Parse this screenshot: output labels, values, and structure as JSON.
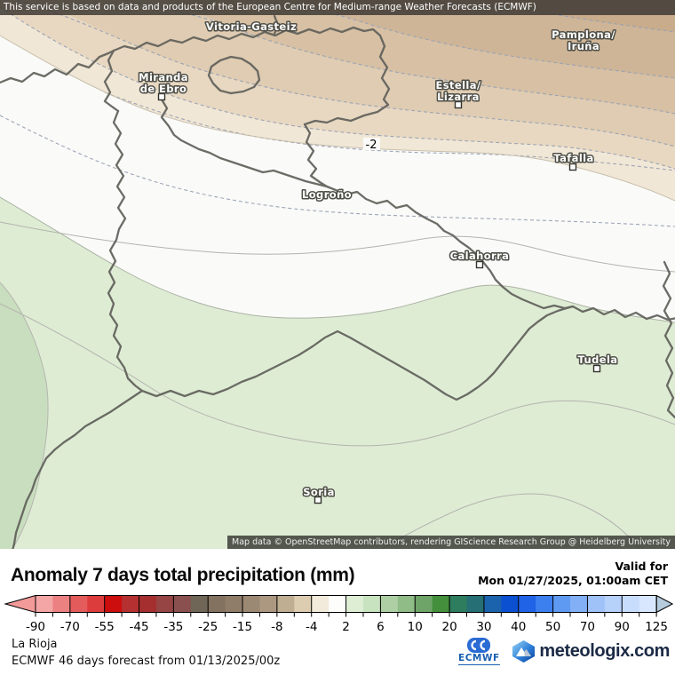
{
  "top_bar": {
    "text": "This service is based on data and products of the European Centre for Medium-range Weather Forecasts (ECMWF)"
  },
  "map": {
    "contour_label": "-2",
    "attribution": "Map data © OpenStreetMap contributors, rendering GIScience Research Group @ Heidelberg University",
    "cities": [
      {
        "line1": "Vitoria-Gasteiz"
      },
      {
        "line1": "Pamplona/",
        "line2": "Iruña"
      },
      {
        "line1": "Miranda",
        "line2": "de Ebro"
      },
      {
        "line1": "Estella/",
        "line2": "Lizarra"
      },
      {
        "line1": "Tafalla"
      },
      {
        "line1": "Logroño"
      },
      {
        "line1": "Calahorra"
      },
      {
        "line1": "Tudela"
      },
      {
        "line1": "Soria"
      }
    ],
    "colors": {
      "white_band": "#FAFAF8",
      "green": "#DEECD4",
      "green_dark": "#C9DEBF",
      "tan_bands": [
        "#C9AC8B",
        "#CFB597",
        "#D7C0A4",
        "#DFCCB2",
        "#E8D8C1",
        "#F1E7D6"
      ]
    }
  },
  "panel": {
    "title": "Anomaly 7 days total precipitation (mm)",
    "valid_for_label": "Valid for",
    "valid_datetime": "Mon 01/27/2025, 01:00am CET",
    "region": "La Rioja",
    "forecast_info": "ECMWF 46 days forecast from  01/13/2025/00z",
    "logos": {
      "ecmwf": "ECMWF",
      "meteologix": "meteologix.com"
    }
  },
  "legend": {
    "labels": [
      "-90",
      "-70",
      "-55",
      "-45",
      "-35",
      "-25",
      "-15",
      "-8",
      "-4",
      "2",
      "6",
      "10",
      "20",
      "30",
      "40",
      "50",
      "70",
      "90",
      "125"
    ],
    "cells": [
      "#F4A6A6",
      "#EC8181",
      "#E45B5B",
      "#DD3C3C",
      "#CC0E0E",
      "#B53030",
      "#A52F2F",
      "#964444",
      "#8A5050",
      "#6F6657",
      "#83725F",
      "#8F7D6A",
      "#9C8973",
      "#AC9880",
      "#C0AE93",
      "#DCCCB0",
      "#F2EADA",
      "#FDFDFC",
      "#DDEED5",
      "#C8E3C0",
      "#AECFA4",
      "#8FBC87",
      "#6FA468",
      "#448F3C",
      "#2E7D5E",
      "#256F75",
      "#1C63AE",
      "#0A50D0",
      "#2063E6",
      "#3C7FEE",
      "#5F9AF2",
      "#82AFF5",
      "#9FC2F8",
      "#B6D1FA",
      "#C8DCFC",
      "#D8E7FD"
    ],
    "arrow_left": "#F29999",
    "arrow_right": "#B5CCDE"
  }
}
